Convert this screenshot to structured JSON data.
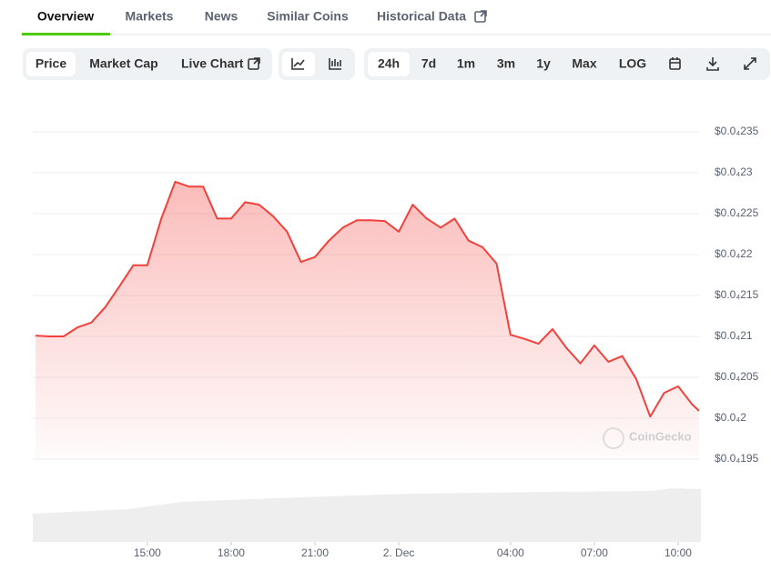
{
  "tabs": [
    "Overview",
    "Markets",
    "News",
    "Similar Coins",
    "Historical Data"
  ],
  "chart_buttons": [
    "Price",
    "Market Cap",
    "Live Chart"
  ],
  "range_buttons": [
    "24h",
    "7d",
    "1m",
    "3m",
    "1y",
    "Max",
    "LOG"
  ],
  "watermark": "CoinGecko",
  "chart_data": {
    "type": "area",
    "color": "#f2413b",
    "x": [
      11,
      11.5,
      12,
      12.5,
      13,
      13.5,
      14,
      14.5,
      15,
      15.5,
      16,
      16.5,
      17,
      17.5,
      18,
      18.5,
      19,
      19.5,
      20,
      20.5,
      21,
      21.5,
      22,
      22.5,
      23,
      23.5,
      24,
      24.5,
      25,
      25.5,
      26,
      26.5,
      27,
      27.5,
      28,
      28.5,
      29,
      29.5,
      30,
      30.5,
      31,
      31.5,
      32,
      32.5,
      33,
      33.5,
      34,
      34.5,
      34.75
    ],
    "values": [
      2.101e-05,
      2.1e-05,
      2.1e-05,
      2.111e-05,
      2.117e-05,
      2.136e-05,
      2.161e-05,
      2.187e-05,
      2.187e-05,
      2.244e-05,
      2.289e-05,
      2.283e-05,
      2.283e-05,
      2.244e-05,
      2.244e-05,
      2.264e-05,
      2.261e-05,
      2.247e-05,
      2.228e-05,
      2.191e-05,
      2.197e-05,
      2.217e-05,
      2.233e-05,
      2.242e-05,
      2.242e-05,
      2.241e-05,
      2.228e-05,
      2.261e-05,
      2.244e-05,
      2.233e-05,
      2.244e-05,
      2.217e-05,
      2.209e-05,
      2.189e-05,
      2.102e-05,
      2.097e-05,
      2.091e-05,
      2.109e-05,
      2.086e-05,
      2.067e-05,
      2.089e-05,
      2.069e-05,
      2.076e-05,
      2.048e-05,
      2.002e-05,
      2.031e-05,
      2.039e-05,
      2.017e-05,
      2.009e-05
    ],
    "xlim": [
      10.9,
      34.75
    ],
    "xticks": [
      {
        "value": 15,
        "label": "15:00"
      },
      {
        "value": 18,
        "label": "18:00"
      },
      {
        "value": 21,
        "label": "21:00"
      },
      {
        "value": 24,
        "label": "2. Dec"
      },
      {
        "value": 28,
        "label": "04:00"
      },
      {
        "value": 31,
        "label": "07:00"
      },
      {
        "value": 34,
        "label": "10:00"
      }
    ],
    "ylim": [
      1.95e-05,
      2.35e-05
    ],
    "yticks": [
      {
        "value": 1.95e-05,
        "label": "$0.0₄195"
      },
      {
        "value": 2e-05,
        "label": "$0.0₄2"
      },
      {
        "value": 2.05e-05,
        "label": "$0.0₄205"
      },
      {
        "value": 2.1e-05,
        "label": "$0.0₄21"
      },
      {
        "value": 2.15e-05,
        "label": "$0.0₄215"
      },
      {
        "value": 2.2e-05,
        "label": "$0.0₄22"
      },
      {
        "value": 2.25e-05,
        "label": "$0.0₄225"
      },
      {
        "value": 2.3e-05,
        "label": "$0.0₄23"
      },
      {
        "value": 2.35e-05,
        "label": "$0.0₄235"
      }
    ],
    "grid": true
  }
}
